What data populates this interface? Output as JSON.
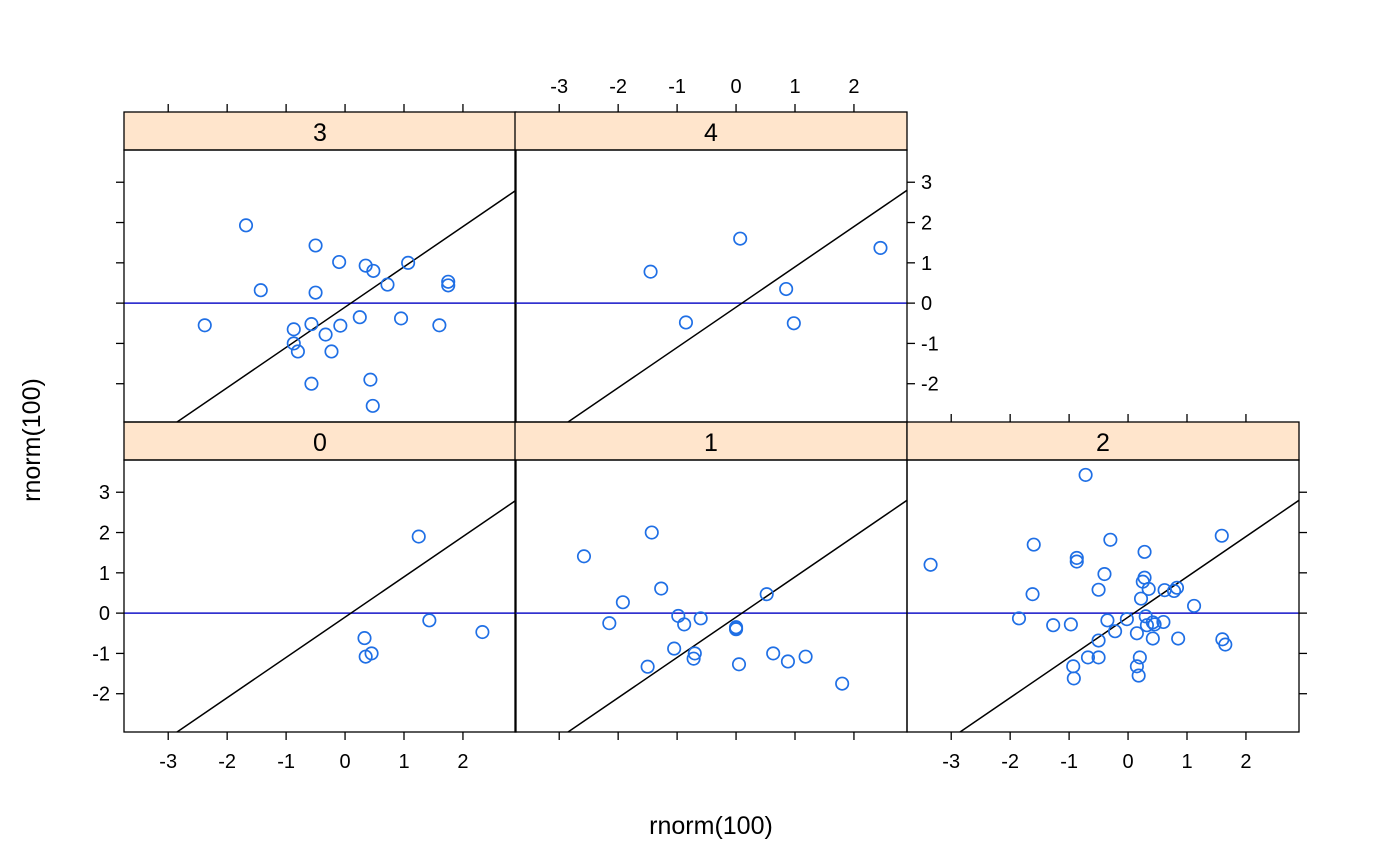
{
  "colors": {
    "strip": "#ffe5cc",
    "point": "#1f6fe5",
    "hline": "#1515c8",
    "frame": "#000000"
  },
  "chart_data": {
    "type": "scatter",
    "layout": "lattice 3 columns x 2 rows",
    "xlabel": "rnorm(100)",
    "ylabel": "rnorm(100)",
    "xlim": [
      -3.75,
      2.9
    ],
    "ylim": [
      -2.95,
      3.8
    ],
    "x_ticks": [
      -3,
      -2,
      -1,
      0,
      1,
      2
    ],
    "y_ticks": [
      -2,
      -1,
      0,
      1,
      2,
      3
    ],
    "x_tick_labels": [
      "-3",
      "-2",
      "-1",
      "0",
      "1",
      "2"
    ],
    "y_tick_labels": [
      "-2",
      "-1",
      "0",
      "1",
      "2",
      "3"
    ],
    "reference_hline": 0,
    "reference_line": {
      "intercept": -0.1,
      "slope": 1
    },
    "panels": [
      {
        "label": "0",
        "points": [
          [
            1.25,
            1.9
          ],
          [
            0.33,
            -0.62
          ],
          [
            1.43,
            -0.18
          ],
          [
            2.33,
            -0.47
          ],
          [
            0.35,
            -1.08
          ],
          [
            0.45,
            -1.0
          ]
        ]
      },
      {
        "label": "1",
        "points": [
          [
            -2.58,
            1.41
          ],
          [
            -1.43,
            2.0
          ],
          [
            -1.92,
            0.27
          ],
          [
            -2.15,
            -0.25
          ],
          [
            -1.27,
            0.61
          ],
          [
            -0.98,
            -0.07
          ],
          [
            -0.88,
            -0.28
          ],
          [
            -0.6,
            -0.13
          ],
          [
            -1.05,
            -0.88
          ],
          [
            -0.7,
            -1.0
          ],
          [
            -0.72,
            -1.13
          ],
          [
            -1.5,
            -1.33
          ],
          [
            0.0,
            -0.35
          ],
          [
            0.0,
            -0.4
          ],
          [
            0.0,
            -0.38
          ],
          [
            0.52,
            0.47
          ],
          [
            0.05,
            -1.27
          ],
          [
            0.63,
            -1.0
          ],
          [
            0.88,
            -1.2
          ],
          [
            1.18,
            -1.08
          ],
          [
            1.8,
            -1.75
          ]
        ]
      },
      {
        "label": "2",
        "points": [
          [
            -3.35,
            1.2
          ],
          [
            -0.72,
            3.43
          ],
          [
            -1.6,
            1.7
          ],
          [
            -0.87,
            1.37
          ],
          [
            -0.87,
            1.28
          ],
          [
            -0.3,
            1.82
          ],
          [
            0.28,
            1.52
          ],
          [
            1.59,
            1.92
          ],
          [
            -0.4,
            0.97
          ],
          [
            0.28,
            0.88
          ],
          [
            0.25,
            0.78
          ],
          [
            0.35,
            0.6
          ],
          [
            -0.5,
            0.58
          ],
          [
            0.62,
            0.57
          ],
          [
            0.78,
            0.55
          ],
          [
            0.83,
            0.63
          ],
          [
            0.22,
            0.36
          ],
          [
            1.12,
            0.18
          ],
          [
            -1.62,
            0.47
          ],
          [
            -1.85,
            -0.13
          ],
          [
            -1.27,
            -0.3
          ],
          [
            -0.97,
            -0.28
          ],
          [
            -0.35,
            -0.18
          ],
          [
            -0.02,
            -0.15
          ],
          [
            0.3,
            -0.08
          ],
          [
            0.32,
            -0.3
          ],
          [
            0.42,
            -0.23
          ],
          [
            0.45,
            -0.28
          ],
          [
            0.6,
            -0.22
          ],
          [
            -0.22,
            -0.45
          ],
          [
            0.15,
            -0.5
          ],
          [
            -0.5,
            -0.68
          ],
          [
            0.42,
            -0.63
          ],
          [
            0.85,
            -0.63
          ],
          [
            1.6,
            -0.65
          ],
          [
            1.65,
            -0.78
          ],
          [
            -0.68,
            -1.1
          ],
          [
            -0.5,
            -1.1
          ],
          [
            0.2,
            -1.1
          ],
          [
            -0.93,
            -1.32
          ],
          [
            0.15,
            -1.32
          ],
          [
            0.18,
            -1.55
          ],
          [
            -0.92,
            -1.62
          ]
        ]
      },
      {
        "label": "3",
        "points": [
          [
            -1.68,
            1.93
          ],
          [
            -0.5,
            1.43
          ],
          [
            -0.1,
            1.02
          ],
          [
            0.35,
            0.93
          ],
          [
            0.48,
            0.8
          ],
          [
            1.07,
            1.0
          ],
          [
            -1.43,
            0.32
          ],
          [
            -0.5,
            0.26
          ],
          [
            0.72,
            0.46
          ],
          [
            1.75,
            0.53
          ],
          [
            1.75,
            0.44
          ],
          [
            -2.38,
            -0.55
          ],
          [
            -0.57,
            -0.52
          ],
          [
            -0.08,
            -0.56
          ],
          [
            0.25,
            -0.35
          ],
          [
            0.95,
            -0.38
          ],
          [
            1.6,
            -0.55
          ],
          [
            -0.87,
            -0.65
          ],
          [
            -0.33,
            -0.78
          ],
          [
            -0.87,
            -1.0
          ],
          [
            -0.8,
            -1.2
          ],
          [
            -0.23,
            -1.2
          ],
          [
            0.43,
            -1.9
          ],
          [
            -0.57,
            -2.0
          ],
          [
            0.47,
            -2.55
          ]
        ]
      },
      {
        "label": "4",
        "points": [
          [
            0.07,
            1.6
          ],
          [
            2.45,
            1.37
          ],
          [
            -1.45,
            0.78
          ],
          [
            0.85,
            0.35
          ],
          [
            -0.85,
            -0.48
          ],
          [
            0.98,
            -0.5
          ]
        ]
      }
    ]
  }
}
